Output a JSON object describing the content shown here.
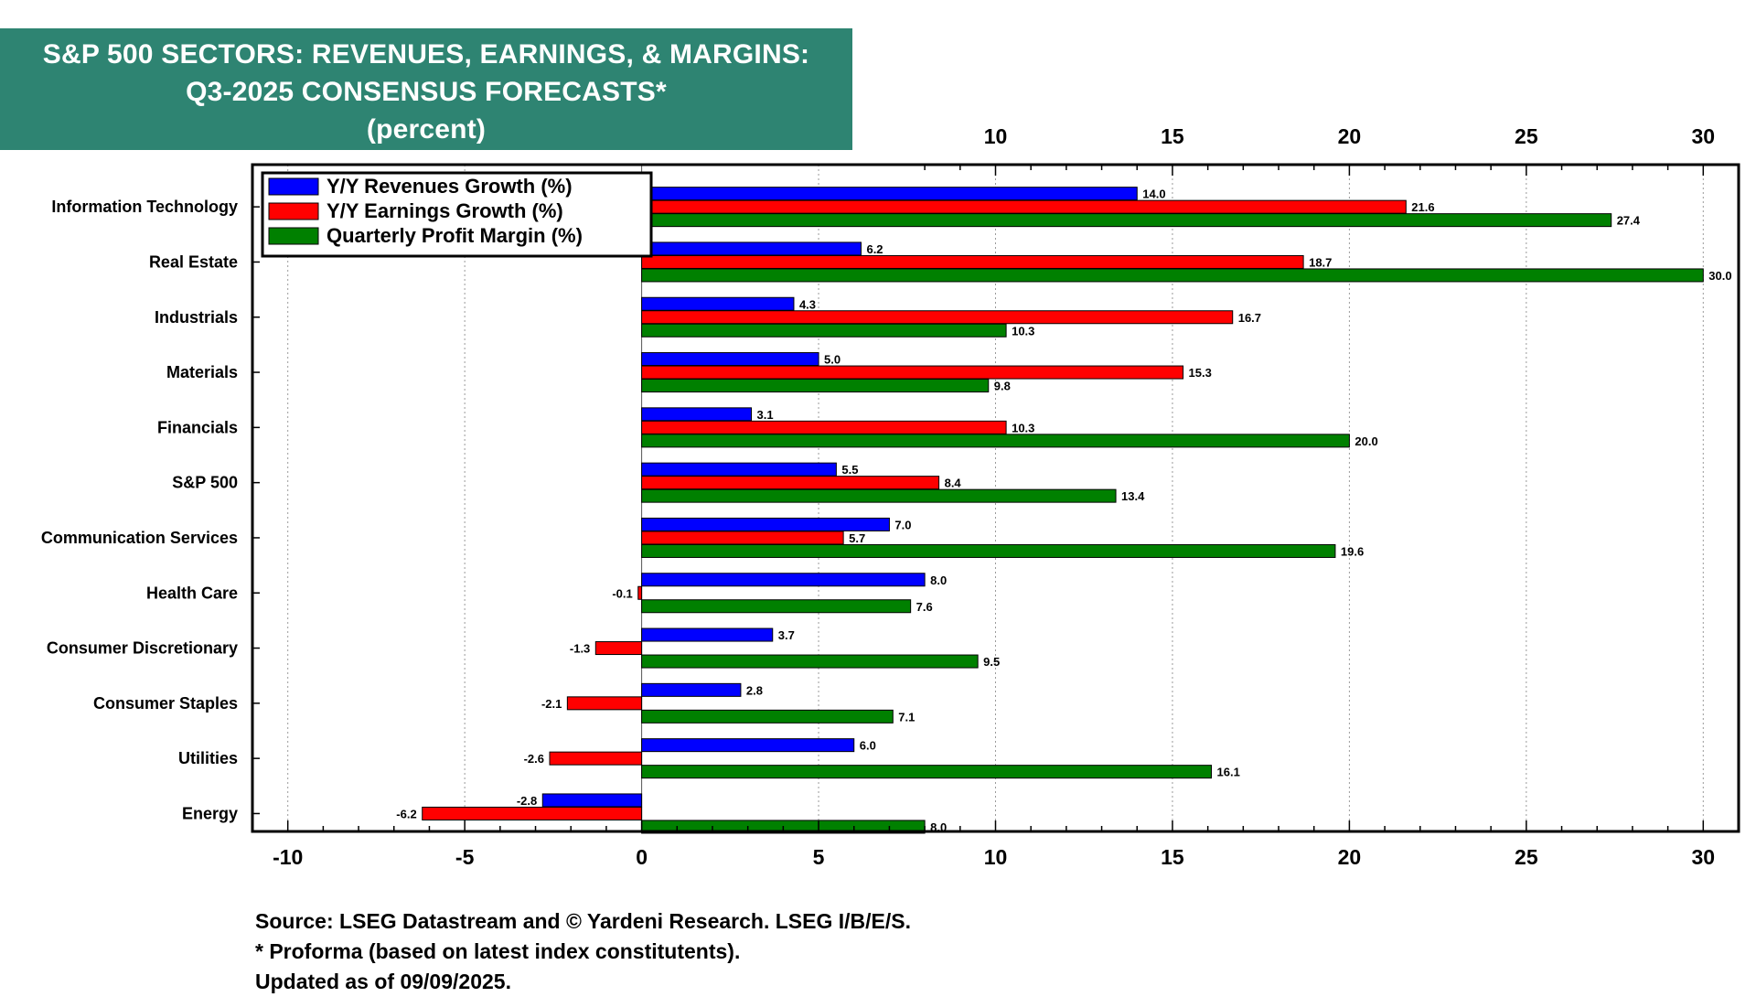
{
  "title": {
    "line1": "S&P 500 SECTORS: REVENUES, EARNINGS, & MARGINS:",
    "line2": "Q3-2025 CONSENSUS FORECASTS*",
    "line3": "(percent)"
  },
  "colors": {
    "title_bg": "#2e8472",
    "revenues": "#0000ff",
    "earnings": "#ff0000",
    "margins": "#008000"
  },
  "footnotes": {
    "source": "Source: LSEG Datastream and © Yardeni Research. LSEG I/B/E/S.",
    "proforma": "* Proforma (based on latest index constitutents).",
    "updated": "Updated as of 09/09/2025."
  },
  "chart_data": {
    "type": "bar",
    "orientation": "horizontal",
    "categories": [
      "Information Technology",
      "Real Estate",
      "Industrials",
      "Materials",
      "Financials",
      "S&P 500",
      "Communication Services",
      "Health Care",
      "Consumer Discretionary",
      "Consumer Staples",
      "Utilities",
      "Energy"
    ],
    "series": [
      {
        "name": "Y/Y Revenues Growth (%)",
        "color": "#0000ff",
        "values": [
          14.0,
          6.2,
          4.3,
          5.0,
          3.1,
          5.5,
          7.0,
          8.0,
          3.7,
          2.8,
          6.0,
          -2.8
        ]
      },
      {
        "name": "Y/Y Earnings Growth (%)",
        "color": "#ff0000",
        "values": [
          21.6,
          18.7,
          16.7,
          15.3,
          10.3,
          8.4,
          5.7,
          -0.1,
          -1.3,
          -2.1,
          -2.6,
          -6.2
        ]
      },
      {
        "name": "Quarterly Profit Margin (%)",
        "color": "#008000",
        "values": [
          27.4,
          30.0,
          10.3,
          9.8,
          20.0,
          13.4,
          19.6,
          7.6,
          9.5,
          7.1,
          16.1,
          8.0
        ]
      }
    ],
    "xlim": [
      -11,
      31
    ],
    "xticks": [
      -10,
      -5,
      0,
      5,
      10,
      15,
      20,
      25,
      30
    ],
    "top_ticks": [
      10,
      15,
      20,
      25,
      30
    ],
    "grid": true,
    "legend": "top-left",
    "xlabel": "",
    "ylabel": ""
  }
}
